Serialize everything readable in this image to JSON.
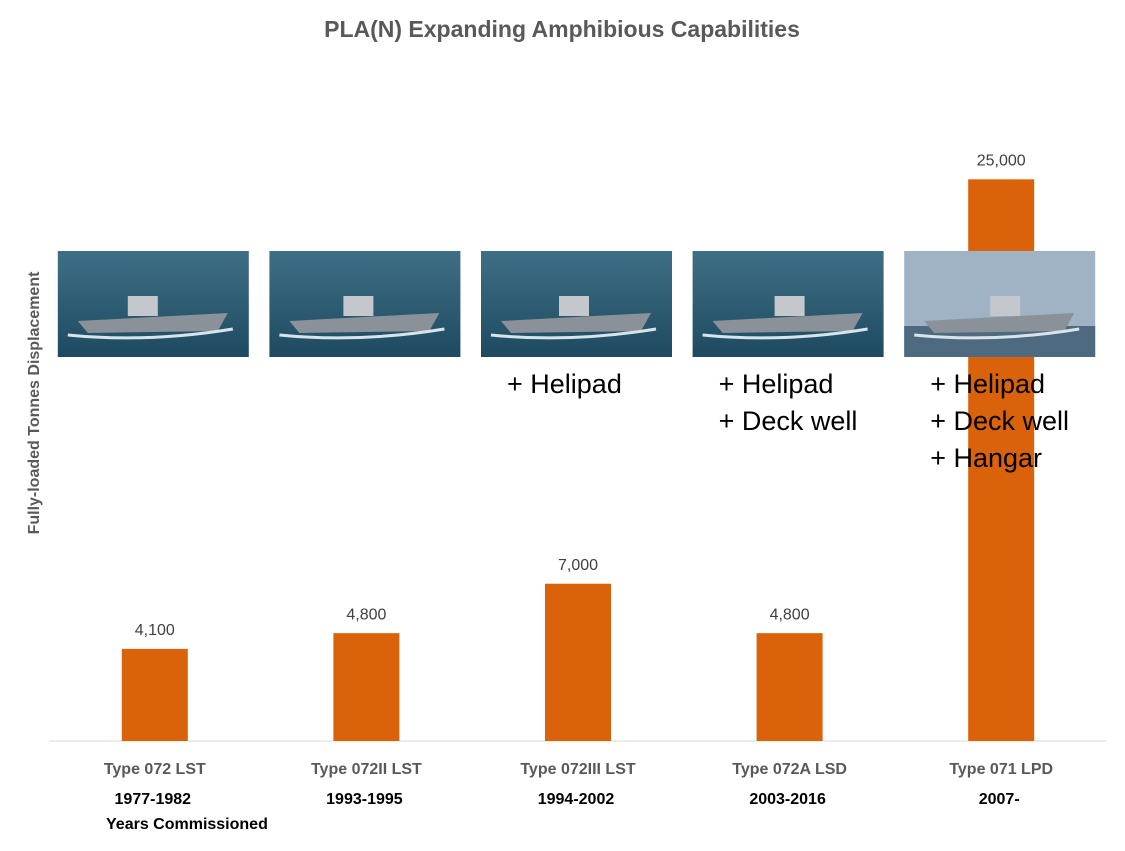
{
  "chart_data": {
    "type": "bar",
    "title": "PLA(N) Expanding Amphibious Capabilities",
    "y_label": "Fully-loaded Tonnes Displacement",
    "categories": [
      "Type 072 LST",
      "Type 072II LST",
      "Type 072III LST",
      "Type 072A LSD",
      "Type 071 LPD"
    ],
    "values": [
      4100,
      4800,
      7000,
      4800,
      25000
    ],
    "value_labels": [
      "4,100",
      "4,800",
      "7,000",
      "4,800",
      "25,000"
    ],
    "years": [
      "1977-1982",
      "1993-1995",
      "1994-2002",
      "2003-2016",
      "2007-"
    ],
    "years_label": "Years Commissioned",
    "features": [
      [],
      [],
      [
        "+ Helipad"
      ],
      [
        "+ Helipad",
        "+ Deck well"
      ],
      [
        "+ Helipad",
        "+ Deck well",
        "+ Hangar"
      ]
    ],
    "color": "#d9620b",
    "ylim": [
      0,
      30000
    ]
  }
}
